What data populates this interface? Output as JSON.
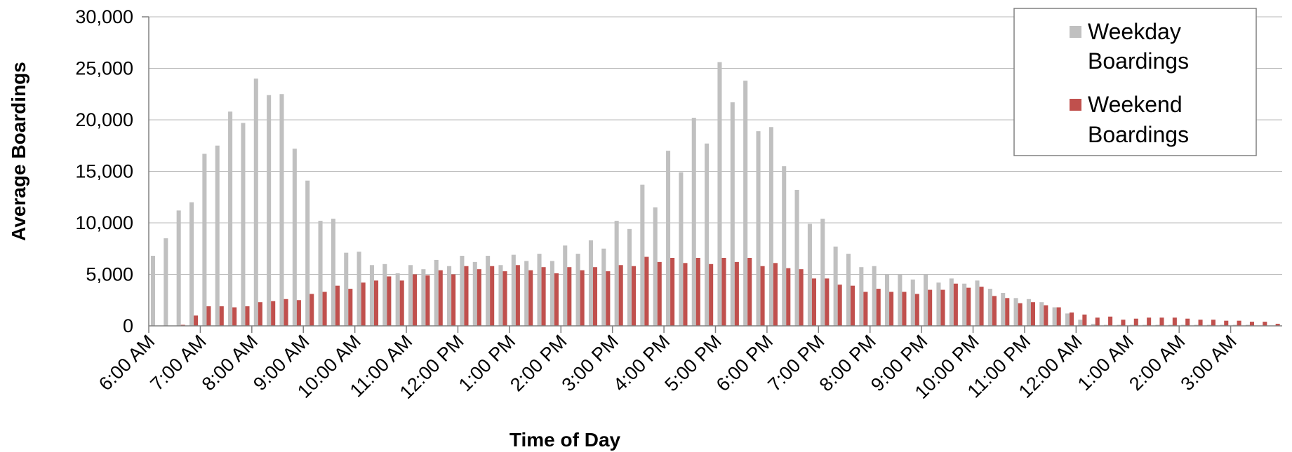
{
  "chart_data": {
    "type": "bar",
    "xlabel": "Time of Day",
    "ylabel": "Average Boardings",
    "ylim": [
      0,
      30000
    ],
    "yticks": [
      "0",
      "5,000",
      "10,000",
      "15,000",
      "20,000",
      "25,000",
      "30,000"
    ],
    "xtick_labels": [
      "6:00 AM",
      "7:00 AM",
      "8:00 AM",
      "9:00 AM",
      "10:00 AM",
      "11:00 AM",
      "12:00 PM",
      "1:00 PM",
      "2:00 PM",
      "3:00 PM",
      "4:00 PM",
      "5:00 PM",
      "6:00 PM",
      "7:00 PM",
      "8:00 PM",
      "9:00 PM",
      "10:00 PM",
      "11:00 PM",
      "12:00 AM",
      "1:00 AM",
      "2:00 AM",
      "3:00 AM"
    ],
    "grid": true,
    "legend_position": "top-right",
    "interval_minutes": 15,
    "series": [
      {
        "name": "Weekday Boardings",
        "color": "#c0c0c0",
        "values": [
          6800,
          8500,
          11200,
          12000,
          16700,
          17500,
          20800,
          19700,
          24000,
          22400,
          22500,
          17200,
          14100,
          10200,
          10400,
          7100,
          7200,
          5900,
          6000,
          5100,
          5900,
          5500,
          6400,
          5800,
          6800,
          6200,
          6800,
          5900,
          6900,
          6300,
          7000,
          6300,
          7800,
          7000,
          8300,
          7500,
          10200,
          9400,
          13700,
          11500,
          17000,
          14900,
          20200,
          17700,
          25600,
          21700,
          23800,
          18900,
          19300,
          15500,
          13200,
          9900,
          10400,
          7700,
          7000,
          5700,
          5800,
          5000,
          5000,
          4500,
          5000,
          4200,
          4600,
          4100,
          4400,
          3600,
          3200,
          2700,
          2600,
          2300,
          1800,
          1200,
          600,
          200,
          100,
          100,
          100,
          100,
          100,
          100,
          100,
          100,
          100,
          100,
          100,
          100,
          0,
          0
        ]
      },
      {
        "name": "Weekend Boardings",
        "color": "#c0504d",
        "values": [
          0,
          0,
          100,
          1000,
          1900,
          1900,
          1800,
          1900,
          2300,
          2400,
          2600,
          2500,
          3100,
          3300,
          3900,
          3600,
          4200,
          4400,
          4800,
          4400,
          5000,
          4900,
          5400,
          5000,
          5800,
          5500,
          5800,
          5300,
          5900,
          5400,
          5700,
          5100,
          5700,
          5400,
          5700,
          5300,
          5900,
          5800,
          6700,
          6200,
          6600,
          6100,
          6600,
          6000,
          6600,
          6200,
          6600,
          5800,
          6100,
          5600,
          5500,
          4600,
          4600,
          4000,
          3900,
          3300,
          3600,
          3300,
          3300,
          3100,
          3500,
          3500,
          4100,
          3700,
          3800,
          2900,
          2700,
          2200,
          2300,
          2000,
          1800,
          1300,
          1100,
          800,
          900,
          600,
          700,
          800,
          800,
          800,
          700,
          600,
          600,
          500,
          500,
          400,
          400,
          200
        ]
      }
    ]
  },
  "legend": {
    "weekday_line1": "Weekday",
    "weekday_line2": "Boardings",
    "weekend_line1": "Weekend",
    "weekend_line2": "Boardings"
  }
}
